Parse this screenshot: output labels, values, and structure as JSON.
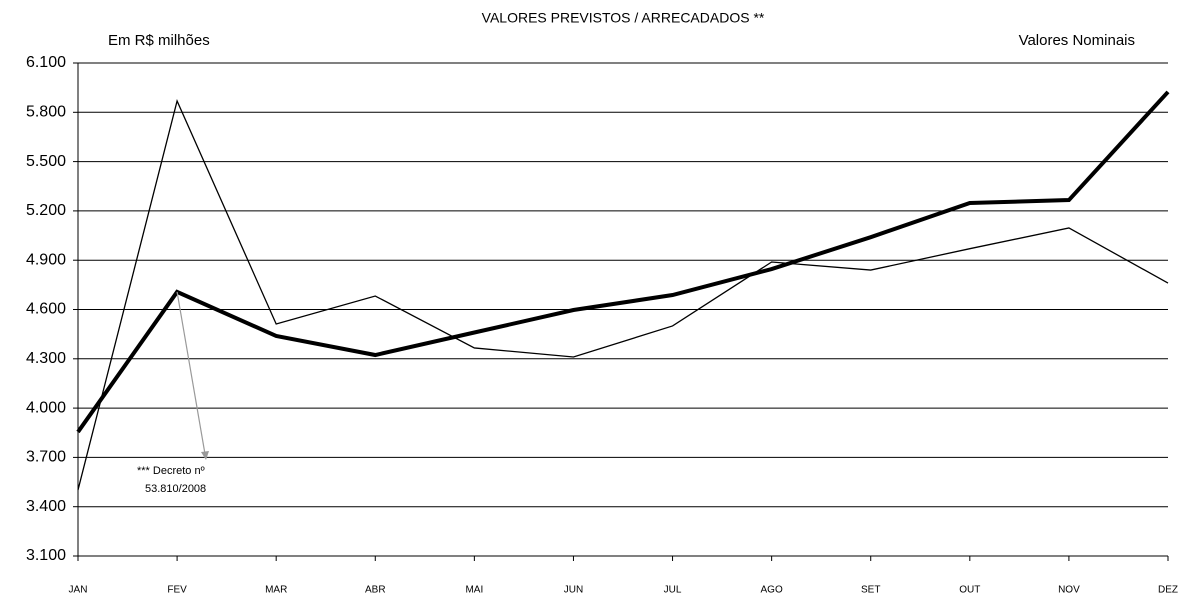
{
  "chart_data": {
    "type": "line",
    "title": "VALORES PREVISTOS / ARRECADADOS **",
    "subtitle_left": "Em R$ milhões",
    "subtitle_right": "Valores Nominais",
    "annotations": [
      "*** Decreto nº",
      "53.810/2008"
    ],
    "categories": [
      "JAN",
      "FEV",
      "MAR",
      "ABR",
      "MAI",
      "JUN",
      "JUL",
      "AGO",
      "SET",
      "OUT",
      "NOV",
      "DEZ"
    ],
    "series": [
      {
        "color": "#000000",
        "width": 4,
        "values": [
          3855,
          4707,
          4439,
          4323,
          4460,
          4597,
          4688,
          4846,
          5040,
          5248,
          5266,
          5924
        ]
      },
      {
        "color": "#000000",
        "width": 1.3,
        "values": [
          3502,
          5869,
          4512,
          4682,
          4366,
          4311,
          4500,
          4889,
          4840,
          4970,
          5096,
          4761
        ]
      }
    ],
    "ylim": [
      3100,
      6100
    ],
    "yticks": [
      {
        "value": 3100,
        "label": "3.100"
      },
      {
        "value": 3400,
        "label": "3.400"
      },
      {
        "value": 3700,
        "label": "3.700"
      },
      {
        "value": 4000,
        "label": "4.000"
      },
      {
        "value": 4300,
        "label": "4.300"
      },
      {
        "value": 4600,
        "label": "4.600"
      },
      {
        "value": 4900,
        "label": "4.900"
      },
      {
        "value": 5200,
        "label": "5.200"
      },
      {
        "value": 5500,
        "label": "5.500"
      },
      {
        "value": 5800,
        "label": "5.800"
      },
      {
        "value": 6100,
        "label": "6.100"
      }
    ],
    "grid": true
  }
}
